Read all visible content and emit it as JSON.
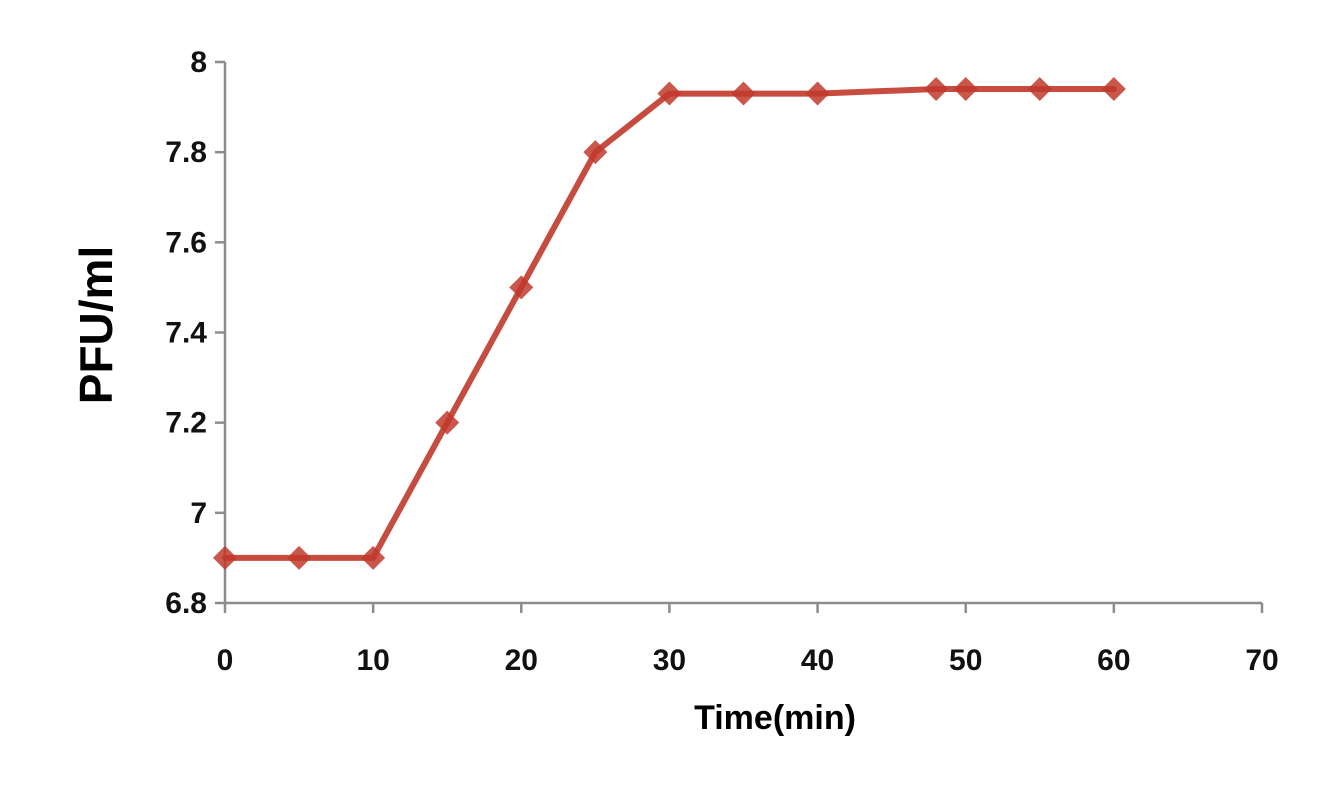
{
  "chart_data": {
    "type": "line",
    "title": "",
    "xlabel": "Time(min)",
    "ylabel": "PFU/ml",
    "xlim": [
      0,
      70
    ],
    "ylim": [
      6.8,
      8
    ],
    "x_ticks": [
      0,
      10,
      20,
      30,
      40,
      50,
      60,
      70
    ],
    "y_ticks": [
      6.8,
      7,
      7.2,
      7.4,
      7.6,
      7.8,
      8
    ],
    "x_tick_labels": [
      "0",
      "10",
      "20",
      "30",
      "40",
      "50",
      "60",
      "70"
    ],
    "y_tick_labels": [
      "6.8",
      "7",
      "7.2",
      "7.4",
      "7.6",
      "7.8",
      "8"
    ],
    "grid": false,
    "legend": "none",
    "series": [
      {
        "color": "#c0392b",
        "marker": "diamond",
        "x": [
          0,
          5,
          10,
          15,
          20,
          25,
          30,
          35,
          40,
          48,
          50,
          55,
          60
        ],
        "y": [
          6.9,
          6.9,
          6.9,
          7.2,
          7.5,
          7.8,
          7.93,
          7.93,
          7.93,
          7.94,
          7.94,
          7.94,
          7.94
        ]
      }
    ]
  }
}
